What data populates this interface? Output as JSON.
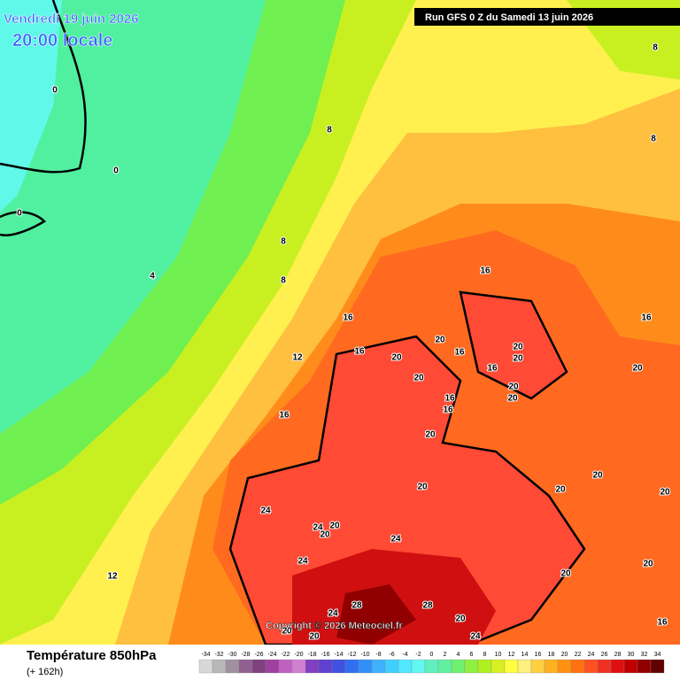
{
  "header": {
    "date": "Vendredi 19 juin 2026",
    "time": "20:00 locale",
    "run": "Run GFS 0 Z du Samedi 13 juin 2026"
  },
  "copyright": "Copyright © 2026 Meteociel.fr",
  "footer": {
    "title": "Température 850hPa",
    "lead": "(+ 162h)"
  },
  "scale": {
    "values": [
      -34,
      -32,
      -30,
      -28,
      -26,
      -24,
      -22,
      -20,
      -18,
      -16,
      -14,
      -12,
      -10,
      -8,
      -6,
      -4,
      -2,
      0,
      2,
      4,
      6,
      8,
      10,
      12,
      14,
      16,
      18,
      20,
      22,
      24,
      26,
      28,
      30,
      32,
      34
    ],
    "colors": [
      "#d8d8d8",
      "#b8b8b8",
      "#a090a0",
      "#906090",
      "#804080",
      "#a040a0",
      "#c060c0",
      "#d080d0",
      "#8040c0",
      "#6040d0",
      "#4050e0",
      "#3070f0",
      "#3090f8",
      "#40b0ff",
      "#40d0ff",
      "#50e8ff",
      "#60f8f0",
      "#60f0c0",
      "#60f0a0",
      "#70f070",
      "#90f040",
      "#b0f020",
      "#d8f020",
      "#ffff40",
      "#fff080",
      "#ffd040",
      "#ffb020",
      "#ff9010",
      "#ff7010",
      "#ff5020",
      "#f03020",
      "#e01010",
      "#c00000",
      "#900000",
      "#600000"
    ]
  },
  "contour_labels": [
    0,
    0,
    0,
    4,
    8,
    8,
    8,
    8,
    8,
    12,
    12,
    16,
    16,
    16,
    16,
    16,
    16,
    16,
    16,
    16,
    16,
    20,
    20,
    20,
    20,
    20,
    20,
    20,
    20,
    20,
    20,
    20,
    20,
    20,
    20,
    20,
    20,
    20,
    20,
    20,
    20,
    24,
    24,
    24,
    24,
    24,
    28,
    28,
    24
  ]
}
